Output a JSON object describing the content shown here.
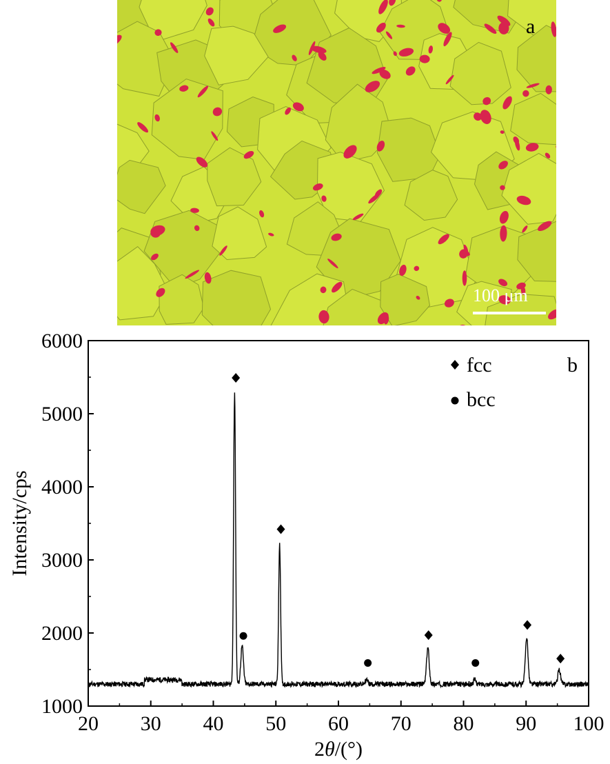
{
  "figure": {
    "panel_a": {
      "label": "a",
      "scale_bar_text": "100 μm",
      "colors": {
        "matrix": "#cfe23a",
        "grain_boundary": "#8fa02a",
        "particles": "#d8244e"
      }
    }
  },
  "chart_data": {
    "type": "line",
    "panel_label": "b",
    "xlabel": "2θ/(°)",
    "ylabel": "Intensity/cps",
    "xlim": [
      20,
      100
    ],
    "ylim": [
      1000,
      6000
    ],
    "xticks": [
      20,
      30,
      40,
      50,
      60,
      70,
      80,
      90,
      100
    ],
    "yticks": [
      1000,
      2000,
      3000,
      4000,
      5000,
      6000
    ],
    "grid": false,
    "legend_position": "top-right",
    "legend": [
      {
        "symbol": "diamond",
        "label": "fcc"
      },
      {
        "symbol": "circle",
        "label": "bcc"
      }
    ],
    "series": [
      {
        "baseline": 1300,
        "peaks": [
          {
            "x": 43.4,
            "height": 5300,
            "phase": "fcc"
          },
          {
            "x": 44.6,
            "height": 1820,
            "phase": "bcc"
          },
          {
            "x": 50.6,
            "height": 3230,
            "phase": "fcc"
          },
          {
            "x": 64.5,
            "height": 1360,
            "phase": "bcc"
          },
          {
            "x": 74.3,
            "height": 1800,
            "phase": "fcc"
          },
          {
            "x": 81.8,
            "height": 1360,
            "phase": "bcc"
          },
          {
            "x": 90.1,
            "height": 1950,
            "phase": "fcc"
          },
          {
            "x": 95.3,
            "height": 1500,
            "phase": "fcc"
          }
        ]
      }
    ],
    "markers": [
      {
        "x": 43.6,
        "y": 5490,
        "symbol": "diamond"
      },
      {
        "x": 44.8,
        "y": 1960,
        "symbol": "circle"
      },
      {
        "x": 50.8,
        "y": 3420,
        "symbol": "diamond"
      },
      {
        "x": 64.7,
        "y": 1590,
        "symbol": "circle"
      },
      {
        "x": 74.4,
        "y": 1970,
        "symbol": "diamond"
      },
      {
        "x": 81.9,
        "y": 1590,
        "symbol": "circle"
      },
      {
        "x": 90.2,
        "y": 2110,
        "symbol": "diamond"
      },
      {
        "x": 95.5,
        "y": 1650,
        "symbol": "diamond"
      }
    ]
  }
}
